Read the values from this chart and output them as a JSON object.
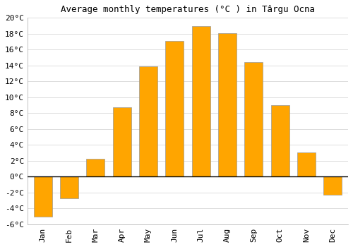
{
  "title": "Average monthly temperatures (°C ) in Târgu Ocna",
  "months": [
    "Jan",
    "Feb",
    "Mar",
    "Apr",
    "May",
    "Jun",
    "Jul",
    "Aug",
    "Sep",
    "Oct",
    "Nov",
    "Dec"
  ],
  "values": [
    -5.0,
    -2.7,
    2.3,
    8.7,
    13.9,
    17.1,
    19.0,
    18.1,
    14.4,
    9.0,
    3.1,
    -2.3
  ],
  "bar_color": "#FFA500",
  "bar_edge_color": "#999999",
  "background_color": "#FFFFFF",
  "grid_color": "#DDDDDD",
  "ylim": [
    -6,
    20
  ],
  "yticks": [
    -6,
    -4,
    -2,
    0,
    2,
    4,
    6,
    8,
    10,
    12,
    14,
    16,
    18,
    20
  ],
  "title_fontsize": 9,
  "tick_fontsize": 8,
  "zero_line_color": "#000000"
}
